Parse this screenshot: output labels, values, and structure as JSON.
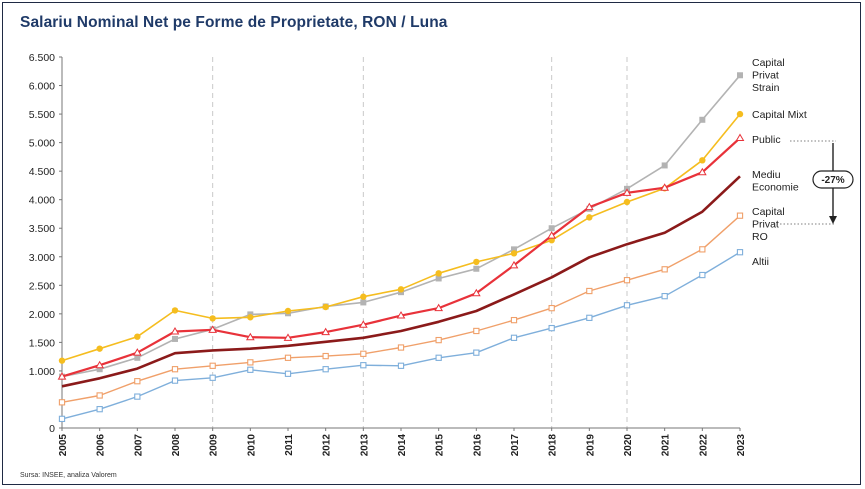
{
  "title": "Salariu Nominal Net pe Forme de Proprietate, RON / Luna",
  "source": "Sursa: INSEE, analiza Valorem",
  "annotation": "-27%",
  "chart_data": {
    "type": "line",
    "title": "Salariu Nominal Net pe Forme de Proprietate, RON / Luna",
    "x": [
      "2005",
      "2006",
      "2007",
      "2008",
      "2009",
      "2010",
      "2011",
      "2012",
      "2013",
      "2014",
      "2015",
      "2016",
      "2017",
      "2018",
      "2019",
      "2020",
      "2021",
      "2022",
      "2023"
    ],
    "ylim": [
      0,
      6500
    ],
    "yticks": [
      "0",
      "1.000",
      "1.500",
      "2.000",
      "2.500",
      "3.000",
      "3.500",
      "4.000",
      "4.500",
      "5.000",
      "5.500",
      "6.000",
      "6.500"
    ],
    "ytick_values": [
      0,
      1000,
      1500,
      2000,
      2500,
      3000,
      3500,
      4000,
      4500,
      5000,
      5500,
      6000,
      6500
    ],
    "grid": "vertical dashed",
    "legend": "right, labels at line ends",
    "series": [
      {
        "name": "Capital Privat Strain",
        "label_lines": [
          "Capital",
          "Privat",
          "Strain"
        ],
        "color": "#b3b3b3",
        "marker": "square",
        "width": 1.6,
        "values": [
          900,
          1030,
          1230,
          1560,
          1730,
          1990,
          2010,
          2130,
          2200,
          2380,
          2620,
          2790,
          3130,
          3500,
          3840,
          4190,
          4600,
          5400,
          6180
        ]
      },
      {
        "name": "Capital Mixt",
        "label_lines": [
          "Capital Mixt"
        ],
        "color": "#f5bd1f",
        "marker": "circle",
        "width": 1.6,
        "values": [
          1180,
          1390,
          1600,
          2060,
          1920,
          1940,
          2050,
          2120,
          2300,
          2430,
          2710,
          2910,
          3060,
          3290,
          3690,
          3960,
          4200,
          4690,
          5500
        ]
      },
      {
        "name": "Public",
        "label_lines": [
          "Public"
        ],
        "color": "#e8323a",
        "marker": "triangle",
        "width": 2.2,
        "values": [
          900,
          1100,
          1320,
          1690,
          1720,
          1590,
          1580,
          1680,
          1810,
          1970,
          2100,
          2360,
          2850,
          3370,
          3870,
          4120,
          4210,
          4480,
          5080
        ]
      },
      {
        "name": "Mediu Economie",
        "label_lines": [
          "Mediu",
          "Economie"
        ],
        "color": "#8b1a1a",
        "marker": "none",
        "width": 2.6,
        "values": [
          730,
          870,
          1040,
          1310,
          1360,
          1390,
          1440,
          1510,
          1580,
          1700,
          1860,
          2050,
          2340,
          2640,
          2990,
          3220,
          3420,
          3790,
          4410
        ]
      },
      {
        "name": "Capital Privat RO",
        "label_lines": [
          "Capital",
          "Privat",
          "RO"
        ],
        "color": "#f0a06a",
        "marker": "square-open",
        "width": 1.4,
        "values": [
          450,
          570,
          820,
          1030,
          1090,
          1150,
          1230,
          1260,
          1300,
          1410,
          1540,
          1700,
          1890,
          2100,
          2400,
          2590,
          2780,
          3130,
          3720
        ]
      },
      {
        "name": "Altii",
        "label_lines": [
          "Altii"
        ],
        "color": "#7fafdb",
        "marker": "square-open",
        "width": 1.4,
        "values": [
          160,
          330,
          550,
          830,
          880,
          1020,
          950,
          1030,
          1100,
          1090,
          1230,
          1320,
          1580,
          1750,
          1930,
          2150,
          2310,
          2680,
          3080
        ]
      }
    ]
  }
}
